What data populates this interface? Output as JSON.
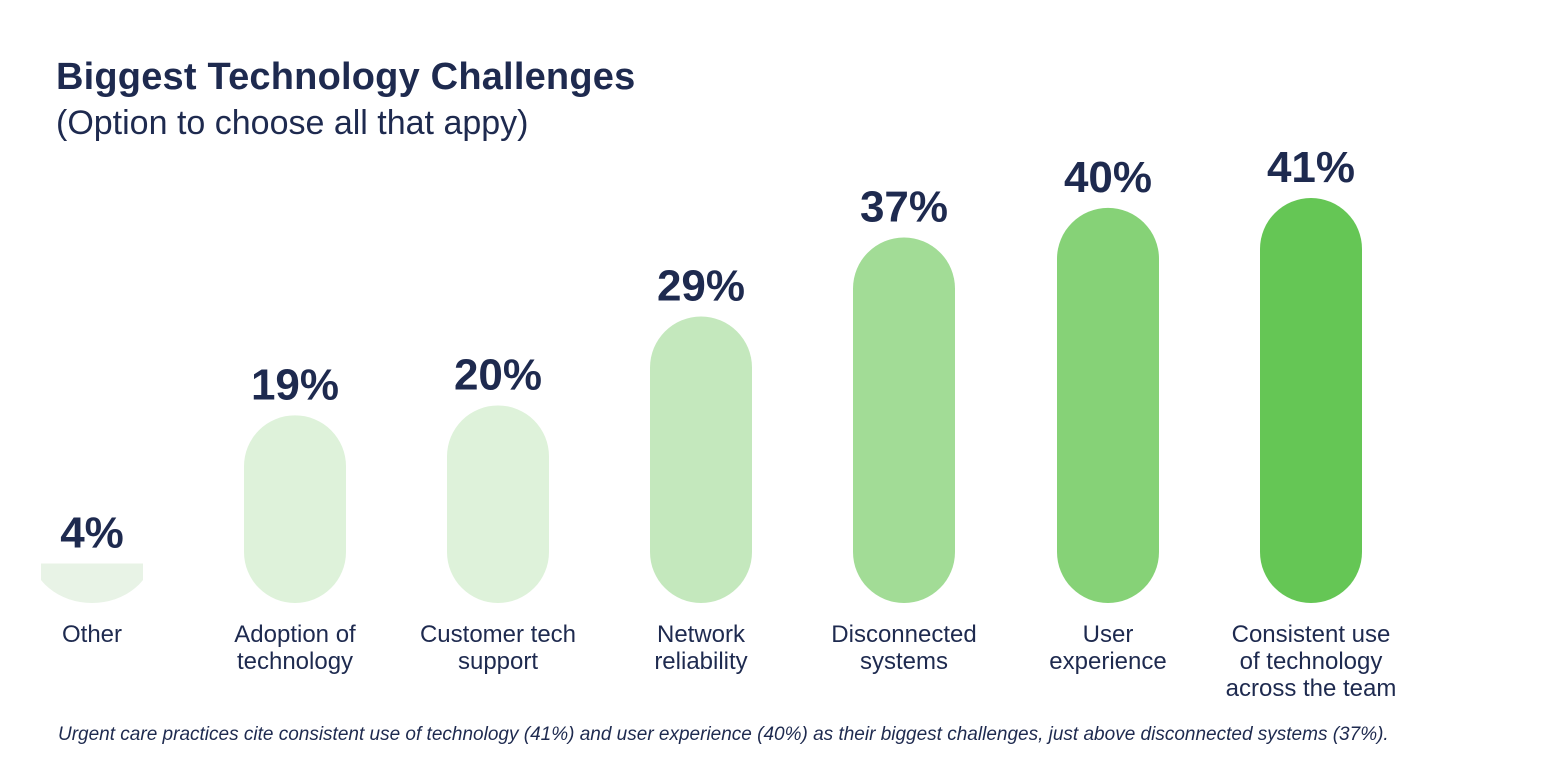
{
  "chart_data": {
    "type": "bar",
    "title": "Biggest Technology Challenges",
    "subtitle": "(Option to choose all that appy)",
    "categories": [
      [
        "Other"
      ],
      [
        "Adoption of",
        "technology"
      ],
      [
        "Customer tech",
        "support"
      ],
      [
        "Network",
        "reliability"
      ],
      [
        "Disconnected",
        "systems"
      ],
      [
        "User",
        "experience"
      ],
      [
        "Consistent use",
        "of technology",
        "across the team"
      ]
    ],
    "values": [
      4,
      19,
      20,
      29,
      37,
      40,
      41
    ],
    "value_labels": [
      "4%",
      "19%",
      "20%",
      "29%",
      "37%",
      "40%",
      "41%"
    ],
    "colors": [
      "#e8f3e6",
      "#def2da",
      "#def2da",
      "#c4e8bd",
      "#a2dc96",
      "#86d277",
      "#65c655"
    ],
    "ylim": [
      0,
      41
    ],
    "grid": false,
    "legend": "none",
    "xlabel": "",
    "ylabel": ""
  },
  "footnote": "Urgent care practices cite consistent use of technology (41%) and user experience (40%) as their biggest challenges, just above disconnected systems (37%)."
}
